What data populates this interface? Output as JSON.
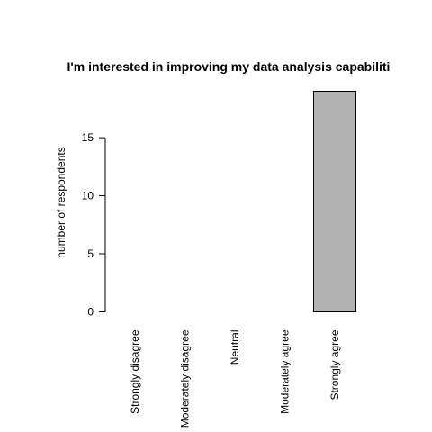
{
  "chart_data": {
    "type": "bar",
    "title": "I'm interested in improving my data analysis capabiliti",
    "xlabel": "",
    "ylabel": "number of respondents",
    "categories": [
      "Strongly disagree",
      "Moderately disagree",
      "Neutral",
      "Moderately agree",
      "Strongly agree"
    ],
    "values": [
      0,
      0,
      0,
      0,
      19
    ],
    "ylim": [
      0,
      19
    ],
    "yticks": [
      0,
      5,
      10,
      15
    ],
    "bar_color": "#b3b3b3",
    "grid": false,
    "legend": "none"
  }
}
